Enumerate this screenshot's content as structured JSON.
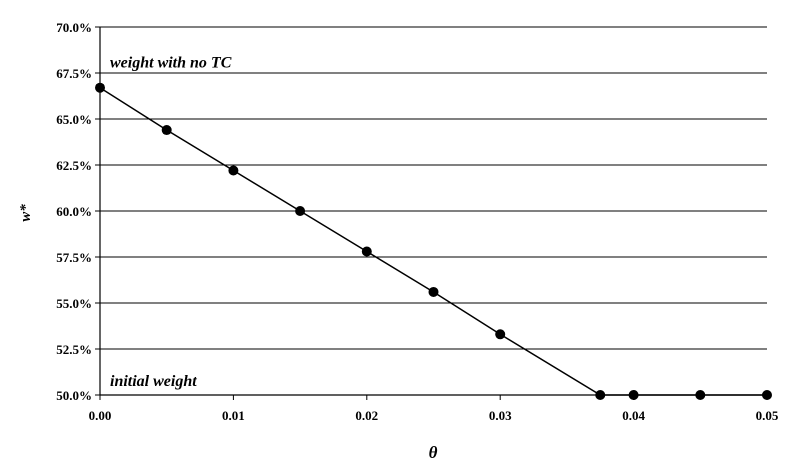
{
  "chart_data": {
    "type": "line",
    "title": "",
    "xlabel": "θ",
    "ylabel": "w*",
    "xlim": [
      0.0,
      0.05
    ],
    "ylim": [
      50.0,
      70.0
    ],
    "xticks": [
      "0.00",
      "0.01",
      "0.02",
      "0.03",
      "0.04",
      "0.05"
    ],
    "yticks": [
      "50.0%",
      "52.5%",
      "55.0%",
      "57.5%",
      "60.0%",
      "62.5%",
      "65.0%",
      "67.5%",
      "70.0%"
    ],
    "grid": "horizontal",
    "legend": "none",
    "series": [
      {
        "x": [
          0.0,
          0.005,
          0.01,
          0.015,
          0.02,
          0.025,
          0.03,
          0.0375,
          0.04,
          0.045,
          0.05
        ],
        "y": [
          66.7,
          64.4,
          62.2,
          60.0,
          57.8,
          55.6,
          53.3,
          50.0,
          50.0,
          50.0,
          50.0
        ],
        "color": "#000000"
      }
    ],
    "annotations": [
      {
        "text": "weight with no TC",
        "x": 0.0,
        "y": 66.7
      },
      {
        "text": "initial weight",
        "x": 0.0,
        "y": 50.0
      }
    ]
  }
}
